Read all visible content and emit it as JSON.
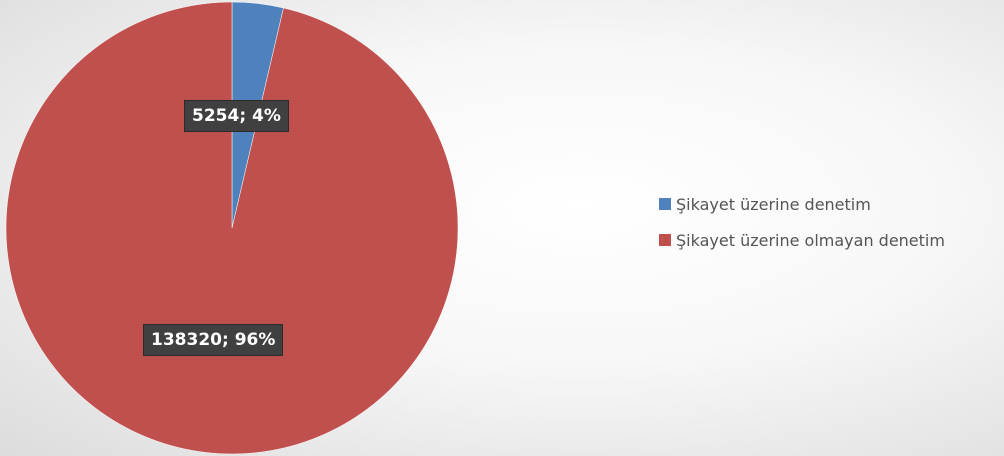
{
  "chart_data": {
    "type": "pie",
    "categories": [
      "Şikayet üzerine denetim",
      "Şikayet üzerine olmayan denetim"
    ],
    "values": [
      5254,
      138320
    ],
    "percent_labels": [
      "4%",
      "96%"
    ],
    "data_labels": [
      "5254; 4%",
      "138320; 96%"
    ],
    "colors": [
      "#4f81bd",
      "#c0504d"
    ],
    "legend": {
      "placement": "right",
      "entries": [
        "Şikayet üzerine denetim",
        "Şikayet üzerine olmayan denetim"
      ]
    },
    "start_angle": "top, clockwise"
  }
}
